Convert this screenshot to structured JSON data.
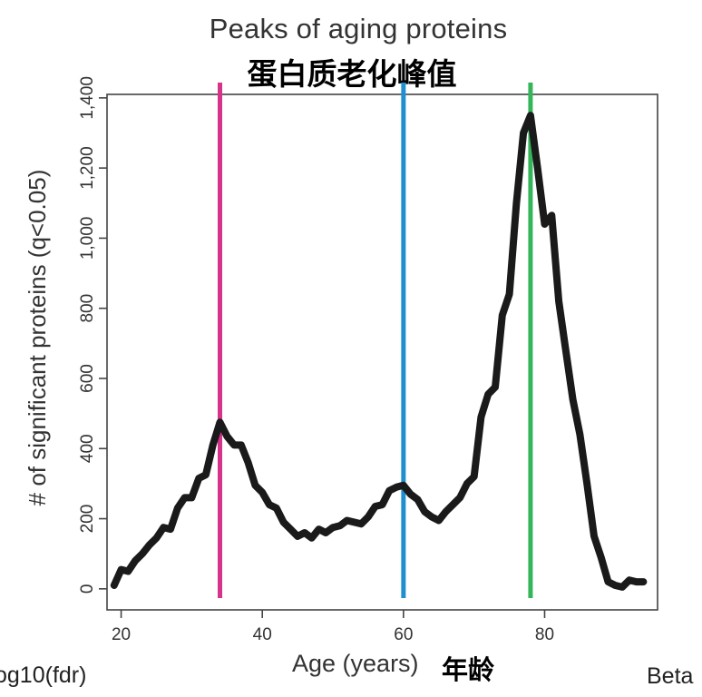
{
  "chart_data": {
    "type": "line",
    "title": "Peaks of aging proteins",
    "subtitle_zh": "蛋白质老化峰值",
    "xlabel": "Age (years)",
    "xlabel_zh": "年龄",
    "ylabel": "# of significant proteins (q<0.05)",
    "xlim": [
      18,
      96
    ],
    "ylim": [
      -60,
      1410
    ],
    "x_ticks": [
      20,
      40,
      60,
      80
    ],
    "y_ticks": [
      0,
      200,
      400,
      600,
      800,
      1000,
      1200,
      1400
    ],
    "y_tick_labels": [
      "0",
      "200",
      "400",
      "600",
      "800",
      "1,000",
      "1,200",
      "1,400"
    ],
    "grid": false,
    "series": [
      {
        "color": "#1a1a1a",
        "x": [
          19,
          20,
          21,
          22,
          23,
          24,
          25,
          26,
          27,
          28,
          29,
          30,
          31,
          32,
          33,
          34,
          35,
          36,
          37,
          38,
          39,
          40,
          41,
          42,
          43,
          44,
          45,
          46,
          47,
          48,
          49,
          50,
          51,
          52,
          53,
          54,
          55,
          56,
          57,
          58,
          59,
          60,
          61,
          62,
          63,
          64,
          65,
          66,
          67,
          68,
          69,
          70,
          71,
          72,
          73,
          74,
          75,
          76,
          77,
          78,
          79,
          80,
          81,
          82,
          83,
          84,
          85,
          86,
          87,
          88,
          89,
          90,
          91,
          92,
          93,
          94
        ],
        "y": [
          10,
          55,
          50,
          80,
          100,
          125,
          145,
          175,
          170,
          230,
          260,
          260,
          315,
          325,
          410,
          475,
          435,
          410,
          410,
          360,
          295,
          275,
          240,
          230,
          190,
          170,
          150,
          160,
          145,
          170,
          160,
          175,
          180,
          195,
          190,
          185,
          205,
          235,
          240,
          280,
          290,
          295,
          270,
          255,
          220,
          205,
          195,
          220,
          240,
          260,
          300,
          320,
          490,
          555,
          575,
          780,
          840,
          1100,
          1300,
          1350,
          1200,
          1040,
          1065,
          820,
          680,
          540,
          440,
          300,
          150,
          90,
          20,
          10,
          5,
          25,
          20,
          20
        ]
      }
    ],
    "vertical_lines": [
      {
        "x": 34,
        "color": "#d6338a"
      },
      {
        "x": 60,
        "color": "#1f8fd0"
      },
      {
        "x": 78,
        "color": "#35b45a"
      }
    ]
  },
  "edge_text": {
    "left": "og10(fdr)",
    "right": "Beta"
  }
}
